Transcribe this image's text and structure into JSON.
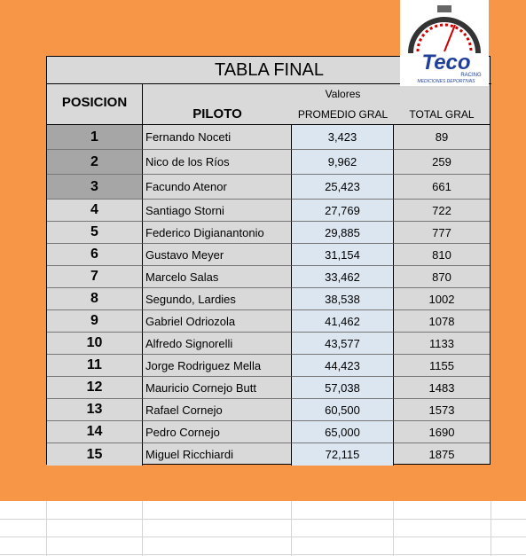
{
  "logo": {
    "brand": "Teco",
    "line1": "RACING",
    "line2": "MEDICIONES DEPORTIVAS"
  },
  "table": {
    "title": "TABLA FINAL",
    "headers": {
      "position": "POSICION",
      "pilot": "PILOTO",
      "group": "Valores",
      "average": "PROMEDIO GRAL",
      "total": "TOTAL GRAL"
    },
    "rows": [
      [
        1,
        "Fernando Noceti",
        "3,423",
        89
      ],
      [
        2,
        "Nico de los Ríos",
        "9,962",
        259
      ],
      [
        3,
        "Facundo Atenor",
        "25,423",
        661
      ],
      [
        4,
        "Santiago Storni",
        "27,769",
        722
      ],
      [
        5,
        "Federico Digianantonio",
        "29,885",
        777
      ],
      [
        6,
        "Gustavo Meyer",
        "31,154",
        810
      ],
      [
        7,
        "Marcelo Salas",
        "33,462",
        870
      ],
      [
        8,
        "Segundo, Lardies",
        "38,538",
        1002
      ],
      [
        9,
        "Gabriel Odriozola",
        "41,462",
        1078
      ],
      [
        10,
        "Alfredo Signorelli",
        "43,577",
        1133
      ],
      [
        11,
        "Jorge Rodriguez Mella",
        "44,423",
        1155
      ],
      [
        12,
        "Mauricio Cornejo Butt",
        "57,038",
        1483
      ],
      [
        13,
        "Rafael Cornejo",
        "60,500",
        1573
      ],
      [
        14,
        "Pedro Cornejo",
        "65,000",
        1690
      ],
      [
        15,
        "Miguel Ricchiardi",
        "72,115",
        1875
      ]
    ]
  }
}
